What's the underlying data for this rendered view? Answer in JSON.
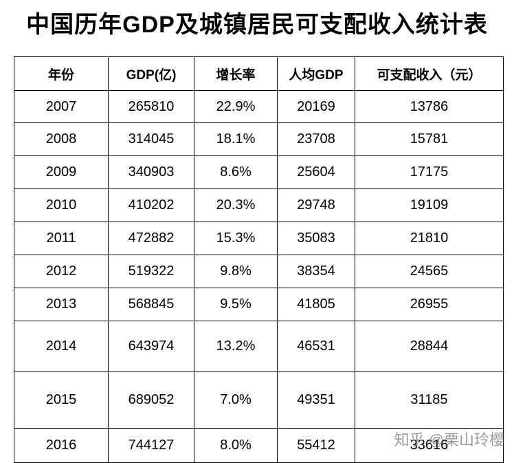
{
  "title": "中国历年GDP及城镇居民可支配收入统计表",
  "table": {
    "header": [
      "年份",
      "GDP(亿)",
      "增长率",
      "人均GDP",
      "可支配收入（元）"
    ],
    "rows": [
      [
        "2007",
        "265810",
        "22.9%",
        "20169",
        "13786"
      ],
      [
        "2008",
        "314045",
        "18.1%",
        "23708",
        "15781"
      ],
      [
        "2009",
        "340903",
        "8.6%",
        "25604",
        "17175"
      ],
      [
        "2010",
        "410202",
        "20.3%",
        "29748",
        "19109"
      ],
      [
        "2011",
        "472882",
        "15.3%",
        "35083",
        "21810"
      ],
      [
        "2012",
        "519322",
        "9.8%",
        "38354",
        "24565"
      ],
      [
        "2013",
        "568845",
        "9.5%",
        "41805",
        "26955"
      ],
      [
        "2014",
        "643974",
        "13.2%",
        "46531",
        "28844"
      ],
      [
        "2015",
        "689052",
        "7.0%",
        "49351",
        "31185"
      ],
      [
        "2016",
        "744127",
        "8.0%",
        "55412",
        "33616"
      ]
    ]
  },
  "watermark": "知乎 @栗山玲樱"
}
